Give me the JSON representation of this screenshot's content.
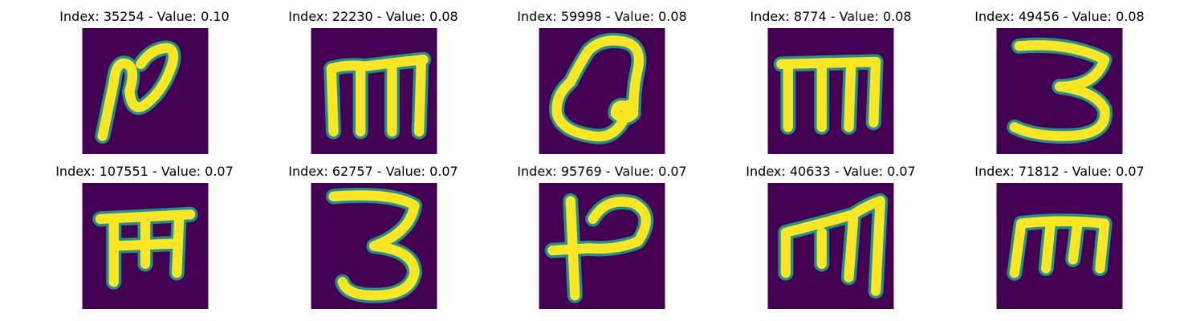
{
  "figure": {
    "background_color": "#440154",
    "stroke_color": "#fde725",
    "edge_color": "#21918c",
    "panels": [
      {
        "title": "Index: 35254 - Value: 0.10",
        "glyph": "curl-n-stroke"
      },
      {
        "title": "Index: 22230 - Value: 0.08",
        "glyph": "m-shape"
      },
      {
        "title": "Index: 59998 - Value: 0.08",
        "glyph": "heart-loop"
      },
      {
        "title": "Index: 8774 - Value: 0.08",
        "glyph": "m-shape-tall"
      },
      {
        "title": "Index: 49456 - Value: 0.08",
        "glyph": "three-shape"
      },
      {
        "title": "Index: 107551 - Value: 0.07",
        "glyph": "m-shape-wide"
      },
      {
        "title": "Index: 62757 - Value: 0.07",
        "glyph": "three-shape-2"
      },
      {
        "title": "Index: 95769 - Value: 0.07",
        "glyph": "hook-shape"
      },
      {
        "title": "Index: 40633 - Value: 0.07",
        "glyph": "m-slanted"
      },
      {
        "title": "Index: 71812 - Value: 0.07",
        "glyph": "m-italic"
      }
    ]
  }
}
